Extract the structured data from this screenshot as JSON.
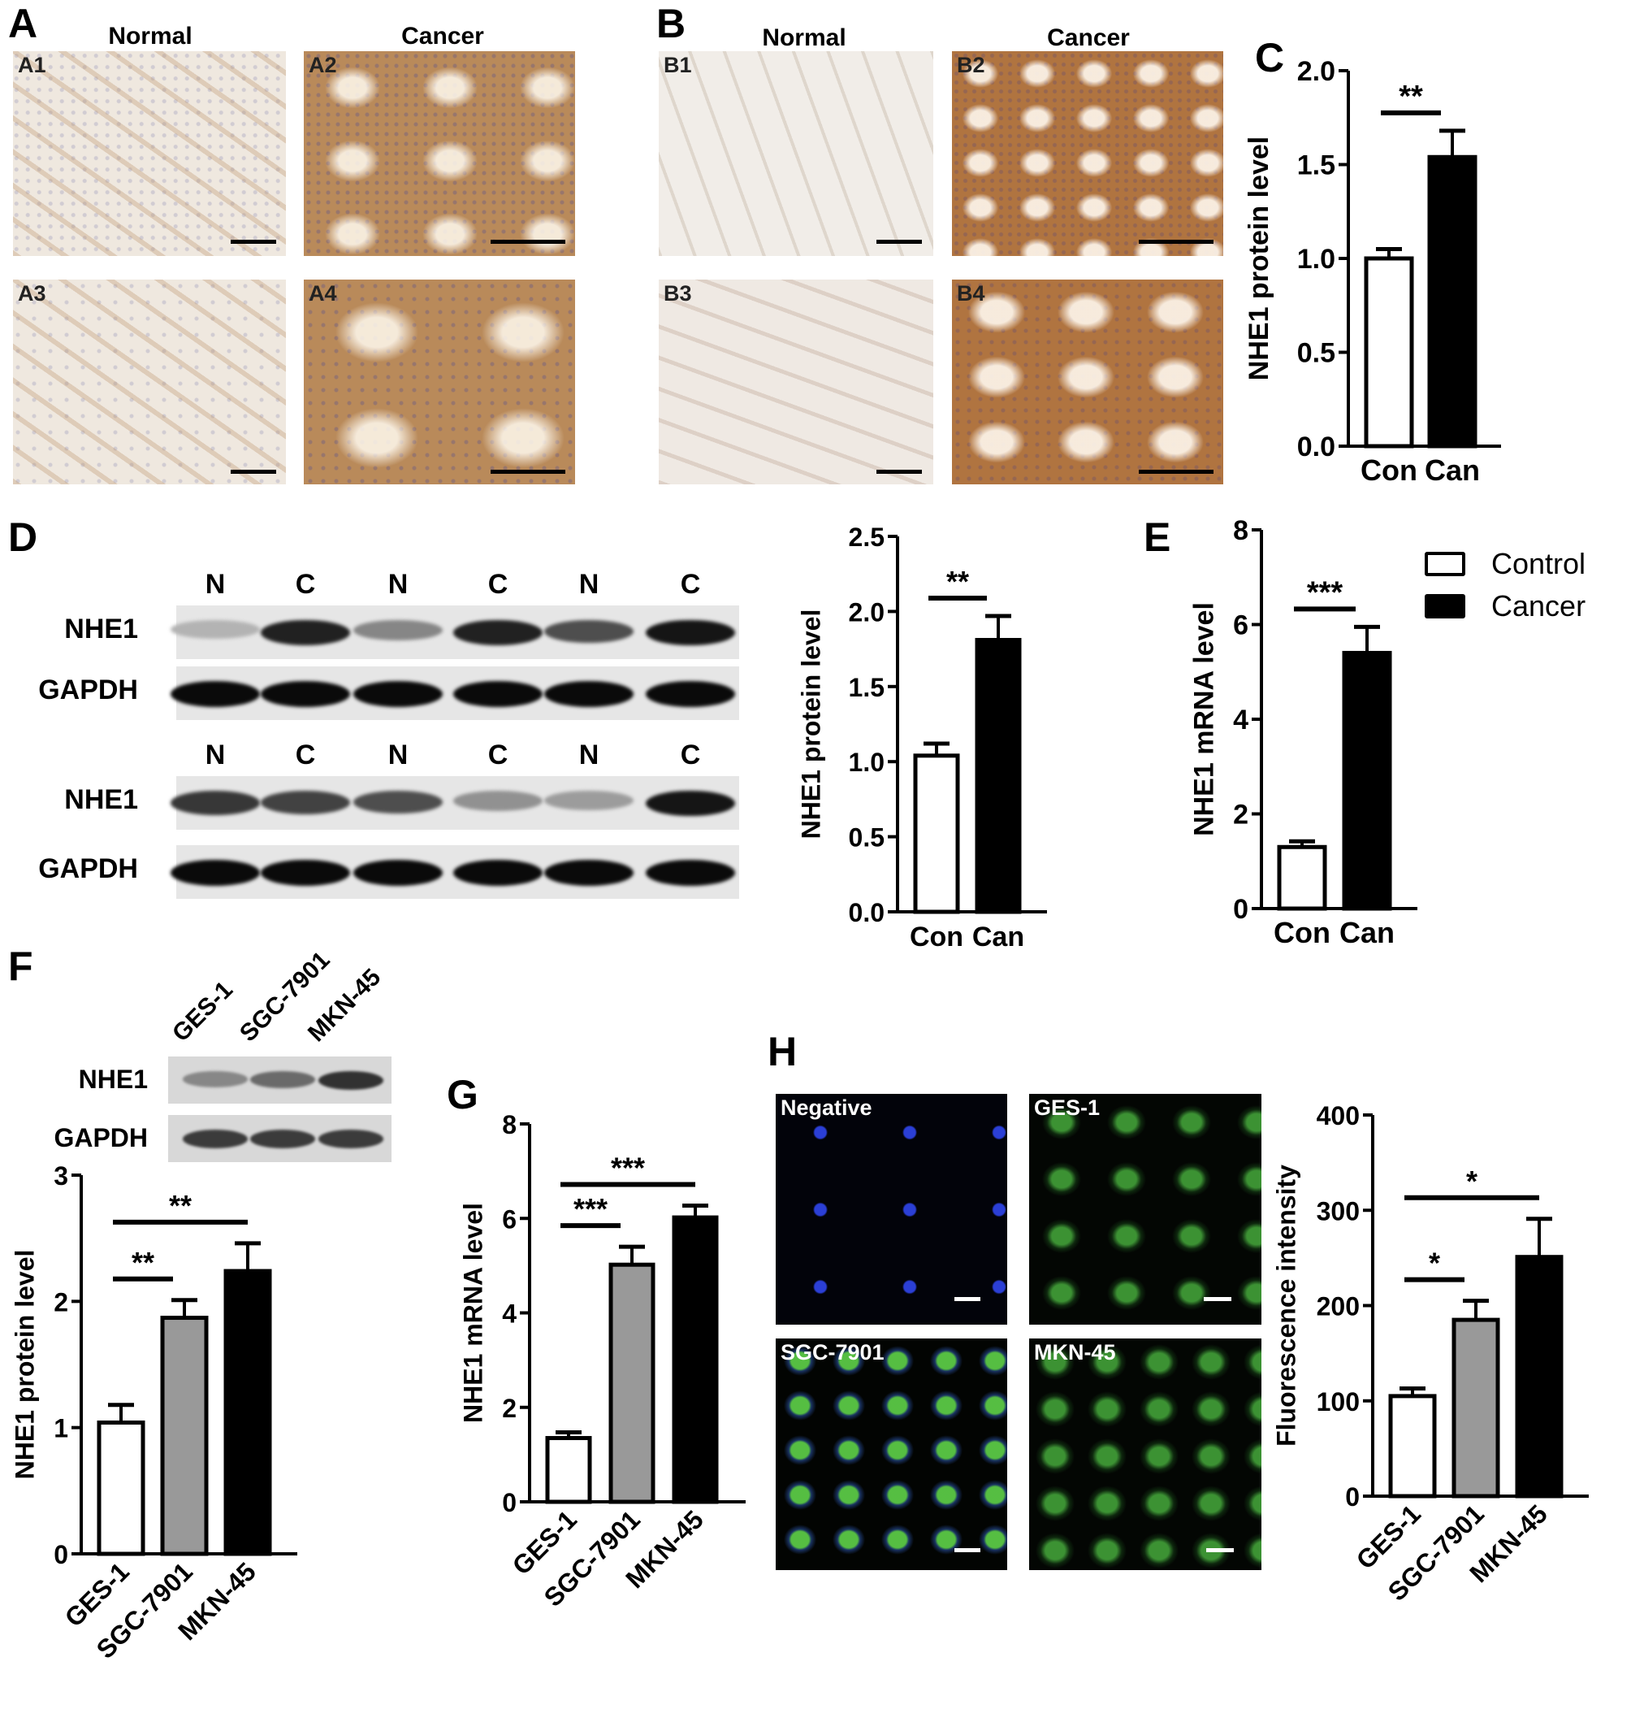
{
  "panels": {
    "A": {
      "letter": "A",
      "normal": "Normal",
      "cancer": "Cancer",
      "images": [
        "A1",
        "A2",
        "A3",
        "A4"
      ]
    },
    "B": {
      "letter": "B",
      "normal": "Normal",
      "cancer": "Cancer",
      "images": [
        "B1",
        "B2",
        "B3",
        "B4"
      ]
    },
    "C": {
      "letter": "C"
    },
    "D": {
      "letter": "D",
      "lanes": [
        "N",
        "C",
        "N",
        "C",
        "N",
        "C"
      ],
      "rows": [
        "NHE1",
        "GAPDH",
        "NHE1",
        "GAPDH"
      ]
    },
    "E": {
      "letter": "E"
    },
    "F": {
      "letter": "F",
      "lanes": [
        "GES-1",
        "SGC-7901",
        "MKN-45"
      ],
      "rows": [
        "NHE1",
        "GAPDH"
      ]
    },
    "G": {
      "letter": "G"
    },
    "H": {
      "letter": "H",
      "images": [
        "Negative",
        "GES-1",
        "SGC-7901",
        "MKN-45"
      ]
    }
  },
  "legend": {
    "entries": [
      {
        "label": "Control",
        "color": "#ffffff"
      },
      {
        "label": "Cancer",
        "color": "#000000"
      }
    ]
  },
  "colors": {
    "white_bar": "#ffffff",
    "gray_bar": "#999999",
    "black_bar": "#000000",
    "ihc_stain": "#b07a48",
    "fluor_green": "#46aa3c",
    "dapi_blue": "#2b3fd6"
  },
  "chart_data": [
    {
      "id": "C",
      "type": "bar",
      "ylabel": "NHE1 protein level",
      "categories": [
        "Con",
        "Can"
      ],
      "values": [
        1.0,
        1.54
      ],
      "errors": [
        0.05,
        0.14
      ],
      "ylim": [
        0,
        2.0
      ],
      "yticks": [
        "0.0",
        "0.5",
        "1.0",
        "1.5",
        "2.0"
      ],
      "colors": [
        "#ffffff",
        "#000000"
      ],
      "significance": [
        {
          "from": 0,
          "to": 1,
          "label": "**"
        }
      ],
      "grid": false
    },
    {
      "id": "D",
      "type": "bar",
      "ylabel": "NHE1 protein level",
      "categories": [
        "Con",
        "Can"
      ],
      "values": [
        1.04,
        1.81
      ],
      "errors": [
        0.08,
        0.16
      ],
      "ylim": [
        0,
        2.5
      ],
      "yticks": [
        "0.0",
        "0.5",
        "1.0",
        "1.5",
        "2.0",
        "2.5"
      ],
      "colors": [
        "#ffffff",
        "#000000"
      ],
      "significance": [
        {
          "from": 0,
          "to": 1,
          "label": "**"
        }
      ],
      "grid": false
    },
    {
      "id": "E",
      "type": "bar",
      "ylabel": "NHE1 mRNA level",
      "categories": [
        "Con",
        "Can"
      ],
      "values": [
        1.3,
        5.4
      ],
      "errors": [
        0.12,
        0.55
      ],
      "ylim": [
        0,
        8
      ],
      "yticks": [
        "0",
        "2",
        "4",
        "6",
        "8"
      ],
      "colors": [
        "#ffffff",
        "#000000"
      ],
      "significance": [
        {
          "from": 0,
          "to": 1,
          "label": "***"
        }
      ],
      "grid": false,
      "legend": "top-right"
    },
    {
      "id": "F",
      "type": "bar",
      "ylabel": "NHE1 protein level",
      "categories": [
        "GES-1",
        "SGC-7901",
        "MKN-45"
      ],
      "values": [
        1.04,
        1.87,
        2.24
      ],
      "errors": [
        0.14,
        0.14,
        0.22
      ],
      "ylim": [
        0,
        3
      ],
      "yticks": [
        "0",
        "1",
        "2",
        "3"
      ],
      "colors": [
        "#ffffff",
        "#999999",
        "#000000"
      ],
      "significance": [
        {
          "from": 0,
          "to": 1,
          "label": "**"
        },
        {
          "from": 0,
          "to": 2,
          "label": "**"
        }
      ],
      "grid": false
    },
    {
      "id": "G",
      "type": "bar",
      "ylabel": "NHE1 mRNA level",
      "categories": [
        "GES-1",
        "SGC-7901",
        "MKN-45"
      ],
      "values": [
        1.35,
        5.02,
        6.02
      ],
      "errors": [
        0.12,
        0.38,
        0.25
      ],
      "ylim": [
        0,
        8
      ],
      "yticks": [
        "0",
        "2",
        "4",
        "6",
        "8"
      ],
      "colors": [
        "#ffffff",
        "#999999",
        "#000000"
      ],
      "significance": [
        {
          "from": 0,
          "to": 1,
          "label": "***"
        },
        {
          "from": 0,
          "to": 2,
          "label": "***"
        }
      ],
      "grid": false
    },
    {
      "id": "H",
      "type": "bar",
      "ylabel": "Fluorescence intensity",
      "categories": [
        "GES-1",
        "SGC-7901",
        "MKN-45"
      ],
      "values": [
        105,
        185,
        251
      ],
      "errors": [
        8,
        20,
        40
      ],
      "ylim": [
        0,
        400
      ],
      "yticks": [
        "0",
        "100",
        "200",
        "300",
        "400"
      ],
      "colors": [
        "#ffffff",
        "#999999",
        "#000000"
      ],
      "significance": [
        {
          "from": 0,
          "to": 1,
          "label": "*"
        },
        {
          "from": 0,
          "to": 2,
          "label": "*"
        }
      ],
      "grid": false
    }
  ]
}
